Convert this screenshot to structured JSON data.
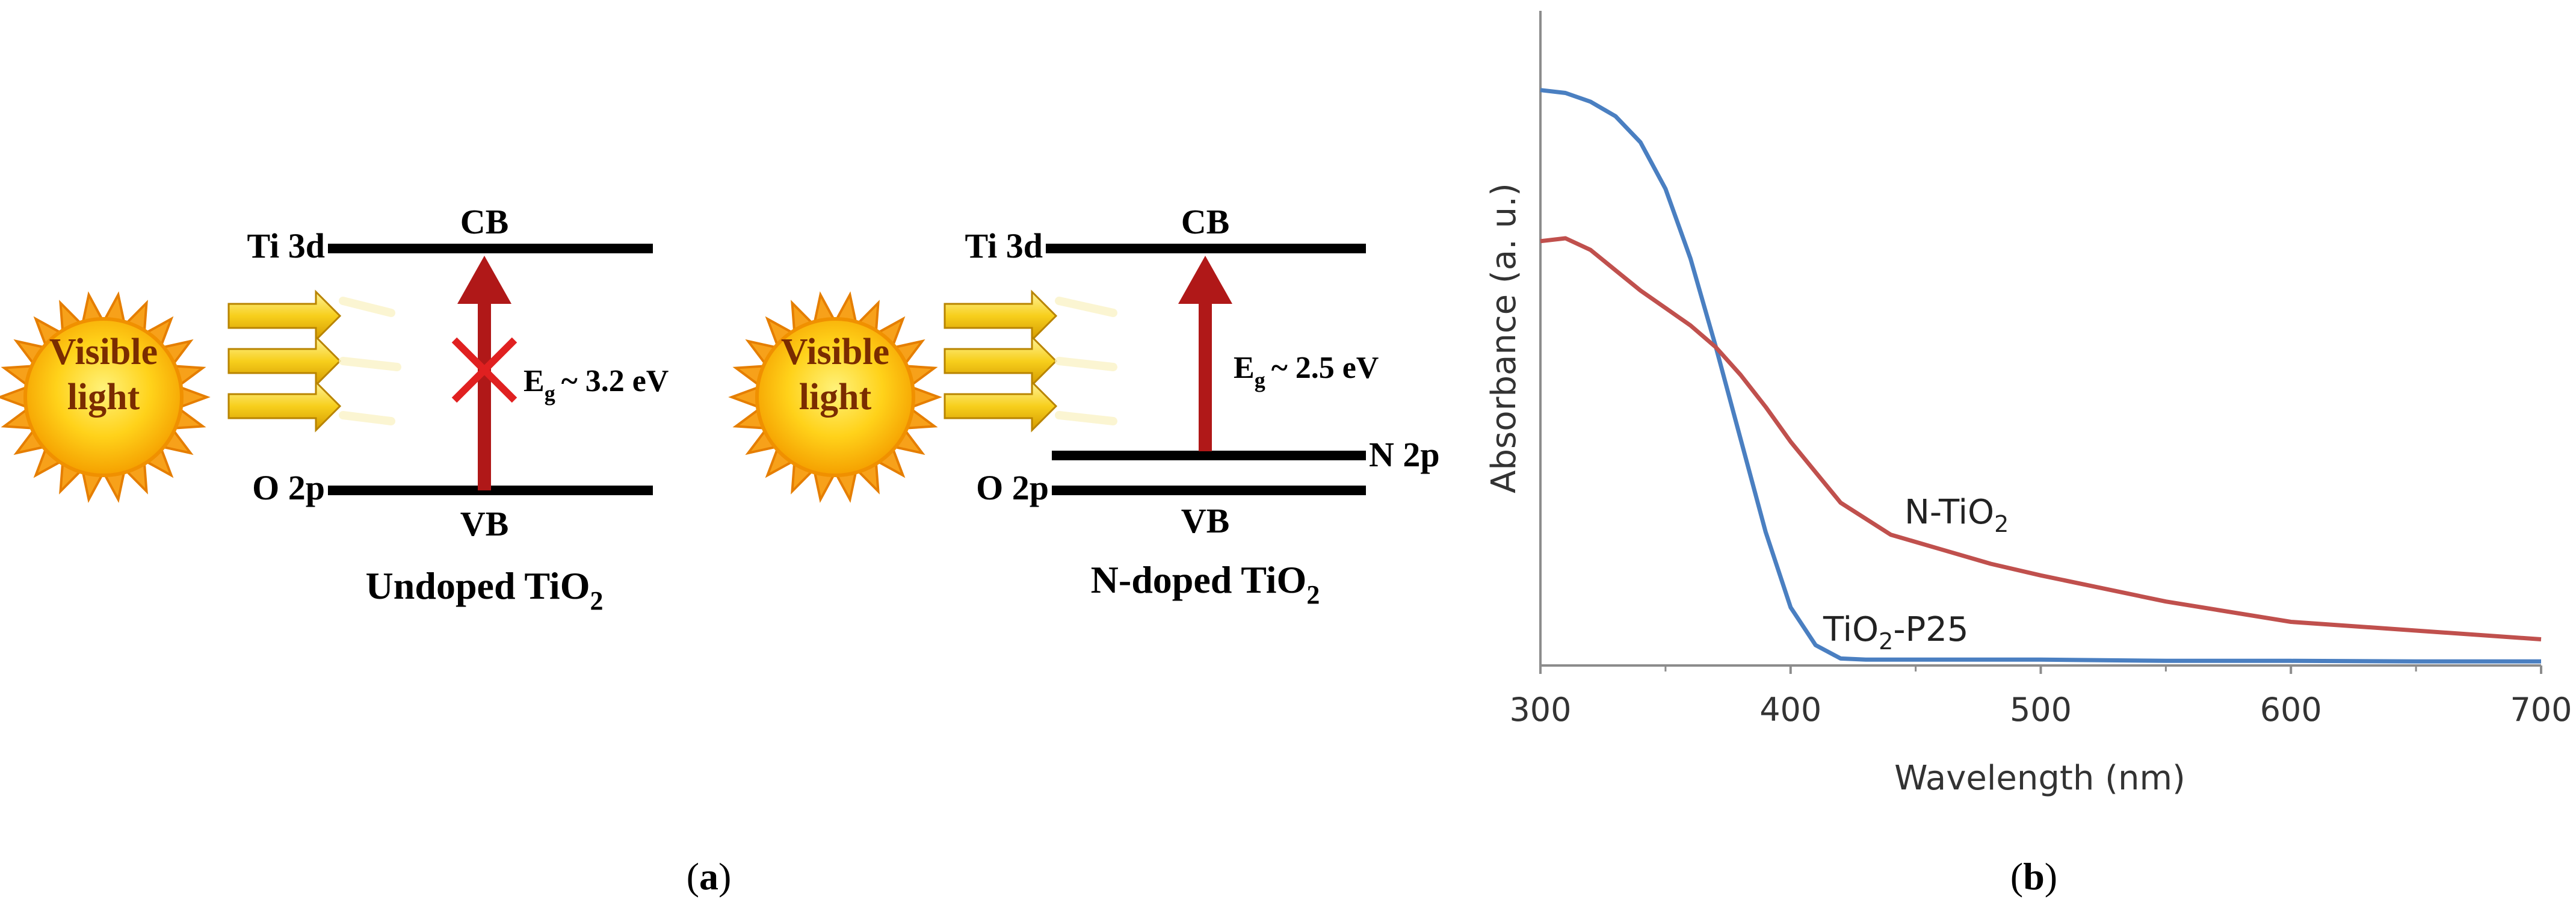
{
  "panel_a": {
    "caption": "a",
    "undoped": {
      "sun_label_line1": "Visible",
      "sun_label_line2": "light",
      "cb_label": "CB",
      "vb_label": "VB",
      "ti_label": "Ti 3d",
      "o_label": "O 2p",
      "eg_symbol": "E",
      "eg_sub": "g",
      "eg_value": "~ 3.2 eV",
      "title_main": "Undoped TiO",
      "title_sub": "2"
    },
    "doped": {
      "sun_label_line1": "Visible",
      "sun_label_line2": "light",
      "cb_label": "CB",
      "vb_label": "VB",
      "ti_label": "Ti 3d",
      "o_label": "O 2p",
      "n_label": "N 2p",
      "eg_symbol": "E",
      "eg_sub": "g",
      "eg_value": "~ 2.5 eV",
      "title_main": "N-doped TiO",
      "title_sub": "2"
    }
  },
  "panel_b": {
    "caption": "b"
  },
  "chart_data": {
    "type": "line",
    "title": "",
    "xlabel": "Wavelength (nm)",
    "ylabel": "Absorbance (a. u.)",
    "xlim": [
      300,
      700
    ],
    "ylim": [
      0,
      1
    ],
    "x_ticks": [
      300,
      400,
      500,
      600,
      700
    ],
    "x_tick_labels": [
      "300",
      "400",
      "500",
      "600",
      "700"
    ],
    "y_ticks_shown": false,
    "grid": false,
    "series": [
      {
        "name": "TiO2-P25",
        "label_main": "TiO",
        "label_sub": "2",
        "label_tail": "-P25",
        "color": "#4a7fc1",
        "x": [
          300,
          310,
          320,
          330,
          340,
          350,
          360,
          370,
          380,
          390,
          400,
          410,
          420,
          430,
          450,
          500,
          550,
          600,
          650,
          700
        ],
        "y": [
          0.99,
          0.985,
          0.97,
          0.945,
          0.9,
          0.82,
          0.7,
          0.55,
          0.39,
          0.23,
          0.1,
          0.035,
          0.012,
          0.01,
          0.01,
          0.01,
          0.008,
          0.008,
          0.007,
          0.007
        ]
      },
      {
        "name": "N-TiO2",
        "label_main": "N-TiO",
        "label_sub": "2",
        "label_tail": "",
        "color": "#c0504d",
        "x": [
          300,
          310,
          320,
          330,
          340,
          350,
          360,
          370,
          380,
          390,
          400,
          420,
          440,
          460,
          480,
          500,
          550,
          600,
          650,
          700
        ],
        "y": [
          0.73,
          0.735,
          0.715,
          0.68,
          0.645,
          0.615,
          0.585,
          0.548,
          0.5,
          0.445,
          0.385,
          0.28,
          0.225,
          0.2,
          0.175,
          0.155,
          0.11,
          0.075,
          0.06,
          0.045
        ]
      }
    ]
  },
  "colors": {
    "arrow_red": "#b01818",
    "cross_red": "#e02020",
    "level_black": "#000000",
    "sun_orange": "#f7a11a",
    "sun_yellow": "#ffe21a",
    "beam_yellow": "#f5c400"
  }
}
